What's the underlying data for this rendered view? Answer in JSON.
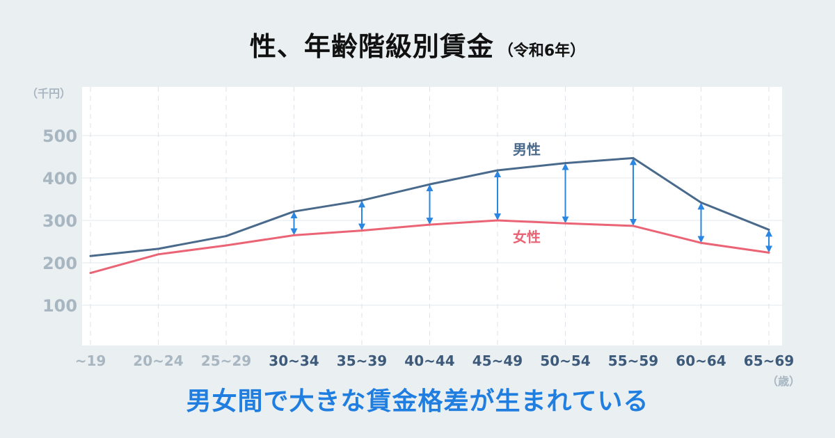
{
  "title": "性、年齢階級別賃金",
  "subtitle": "（令和6年）",
  "caption": "男女間で大きな賃金格差が生まれている",
  "colors": {
    "male": "#4a6a8c",
    "female": "#ea6475",
    "arrow": "#2a86e0",
    "xtick_muted": "#a8b6c1",
    "xtick_strong": "#3d5a7a"
  },
  "chart_data": {
    "type": "line",
    "y_unit_label": "（千円）",
    "x_unit_label": "（歳）",
    "categories": [
      "~19",
      "20~24",
      "25~29",
      "30~34",
      "35~39",
      "40~44",
      "45~49",
      "50~54",
      "55~59",
      "60~64",
      "65~69"
    ],
    "yticks": [
      100,
      200,
      300,
      400,
      500
    ],
    "ylim": [
      0,
      560
    ],
    "grid": true,
    "series": [
      {
        "name": "男性",
        "values": [
          216,
          233,
          263,
          321,
          347,
          385,
          418,
          435,
          447,
          342,
          278
        ]
      },
      {
        "name": "女性",
        "values": [
          176,
          220,
          241,
          265,
          276,
          290,
          300,
          293,
          287,
          247,
          224
        ]
      }
    ],
    "gap_arrow_categories": [
      "30~34",
      "35~39",
      "40~44",
      "45~49",
      "50~54",
      "55~59",
      "60~64",
      "65~69"
    ],
    "muted_categories": [
      "~19",
      "20~24",
      "25~29"
    ]
  }
}
